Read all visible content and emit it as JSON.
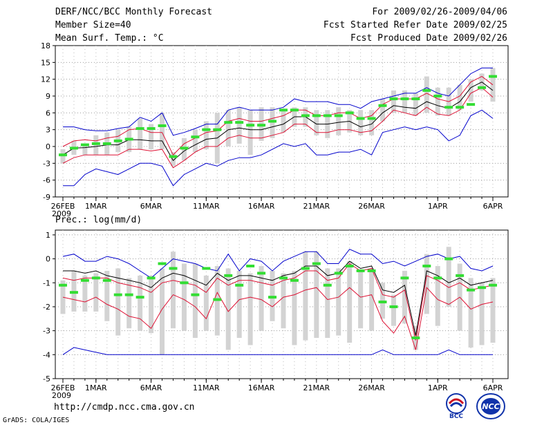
{
  "header": {
    "title": "DERF/NCC/BCC Monthly Forecast",
    "member_size": "Member Size=40",
    "variable_temp": "Mean Surf. Temp.: °C",
    "forecast_for": "For 2009/02/26-2009/04/06",
    "started_refer": "Fcst Started Refer Date 2009/02/25",
    "produced": "Fcst Produced Date 2009/02/26"
  },
  "footer": {
    "url": "http://cmdp.ncc.cma.gov.cn",
    "grads": "GrADS: COLA/IGES",
    "logo_bcc": "BCC",
    "logo_ncc": "NCC"
  },
  "colors": {
    "envelope": "#0000cc",
    "spread": "#dd1133",
    "mean": "#000000",
    "box": "#d3d3d3",
    "obs": "#33dd33"
  },
  "chart_data": [
    {
      "type": "line",
      "title": "Mean Surf. Temp.: °C",
      "ylim": [
        -9,
        18
      ],
      "yticks": [
        -9,
        -6,
        -3,
        0,
        3,
        6,
        9,
        12,
        15,
        18
      ],
      "xticks": [
        {
          "day": 0,
          "label": "26FEB",
          "sub": "2009"
        },
        {
          "day": 3,
          "label": "1MAR"
        },
        {
          "day": 8,
          "label": "6MAR"
        },
        {
          "day": 13,
          "label": "11MAR"
        },
        {
          "day": 18,
          "label": "16MAR"
        },
        {
          "day": 23,
          "label": "21MAR"
        },
        {
          "day": 28,
          "label": "26MAR"
        },
        {
          "day": 34,
          "label": "1APR"
        },
        {
          "day": 39,
          "label": "6APR"
        }
      ],
      "series": [
        {
          "name": "max",
          "values": [
            3.5,
            3.5,
            3.0,
            2.8,
            2.8,
            3.2,
            3.5,
            5.2,
            4.5,
            6.0,
            2.0,
            2.5,
            3.2,
            4.0,
            4.0,
            6.5,
            7.0,
            6.5,
            6.5,
            6.5,
            7.0,
            8.5,
            8.0,
            8.0,
            8.0,
            7.5,
            7.5,
            6.8,
            8.0,
            8.5,
            9.0,
            9.5,
            9.5,
            10.5,
            9.5,
            9.0,
            11.0,
            13.0,
            14.0,
            14.0
          ]
        },
        {
          "name": "upper",
          "values": [
            0.0,
            1.0,
            1.2,
            1.0,
            1.5,
            1.8,
            3.0,
            3.2,
            2.5,
            2.5,
            -1.5,
            0.5,
            1.5,
            2.5,
            2.8,
            4.5,
            5.0,
            4.5,
            4.5,
            5.0,
            5.5,
            6.5,
            6.5,
            5.5,
            5.5,
            6.0,
            6.0,
            5.0,
            5.5,
            7.5,
            8.5,
            8.5,
            8.5,
            9.5,
            8.5,
            8.0,
            9.0,
            11.5,
            12.5,
            11.0
          ]
        },
        {
          "name": "mean",
          "values": [
            -1.5,
            -0.3,
            -0.2,
            0.0,
            0.3,
            0.3,
            1.2,
            1.2,
            1.0,
            1.0,
            -2.5,
            -0.8,
            0.3,
            1.3,
            1.5,
            3.0,
            3.3,
            3.0,
            3.0,
            3.5,
            4.0,
            5.3,
            5.3,
            4.0,
            4.0,
            4.3,
            4.5,
            3.5,
            4.0,
            6.0,
            7.3,
            7.0,
            6.8,
            8.0,
            7.3,
            6.8,
            8.0,
            10.5,
            11.5,
            10.0
          ]
        },
        {
          "name": "lower",
          "values": [
            -3.0,
            -2.0,
            -1.5,
            -1.5,
            -1.5,
            -1.5,
            -0.5,
            -0.5,
            -0.8,
            -0.5,
            -3.8,
            -2.5,
            -1.0,
            0.0,
            0.0,
            1.5,
            2.0,
            1.5,
            1.5,
            2.0,
            2.5,
            4.0,
            4.0,
            2.5,
            2.5,
            3.0,
            3.0,
            2.5,
            2.8,
            4.5,
            6.5,
            6.0,
            5.5,
            7.0,
            5.8,
            5.5,
            6.5,
            9.5,
            10.5,
            8.8
          ]
        },
        {
          "name": "min",
          "values": [
            -7.0,
            -7.0,
            -5.0,
            -4.0,
            -4.5,
            -5.0,
            -4.0,
            -3.0,
            -3.0,
            -3.5,
            -7.0,
            -5.0,
            -4.0,
            -3.0,
            -3.5,
            -2.5,
            -2.0,
            -2.0,
            -1.5,
            -0.5,
            0.5,
            0.0,
            0.5,
            -1.5,
            -1.5,
            -1.0,
            -1.0,
            -0.5,
            -1.5,
            2.5,
            3.0,
            3.5,
            3.0,
            3.5,
            3.0,
            1.0,
            2.0,
            5.5,
            6.5,
            5.0
          ]
        },
        {
          "name": "box_top",
          "values": [
            -0.5,
            1.0,
            0.5,
            2.0,
            2.5,
            3.0,
            3.5,
            5.0,
            4.0,
            6.0,
            -1.0,
            1.5,
            3.0,
            4.5,
            6.0,
            6.5,
            7.0,
            6.5,
            7.0,
            7.0,
            6.5,
            7.0,
            7.0,
            6.5,
            6.5,
            7.0,
            6.5,
            6.5,
            6.5,
            8.5,
            10.0,
            10.0,
            9.5,
            12.5,
            10.5,
            10.5,
            11.0,
            12.0,
            13.0,
            14.0
          ]
        },
        {
          "name": "box_bottom",
          "values": [
            -3.0,
            -1.5,
            -1.5,
            -1.5,
            -1.5,
            -1.0,
            -1.0,
            -0.5,
            -0.5,
            -0.5,
            -3.5,
            -2.5,
            -1.0,
            -0.5,
            -3.0,
            0.0,
            0.5,
            -1.5,
            1.0,
            1.5,
            2.5,
            3.5,
            3.5,
            2.0,
            1.5,
            2.0,
            2.5,
            2.0,
            2.0,
            4.5,
            6.0,
            6.0,
            5.5,
            6.0,
            5.5,
            5.5,
            6.5,
            8.0,
            10.0,
            8.0
          ]
        },
        {
          "name": "observed",
          "values": [
            -1.5,
            -0.3,
            0.3,
            0.5,
            0.5,
            1.0,
            1.3,
            3.2,
            3.2,
            3.7,
            -1.8,
            -0.3,
            1.7,
            3.0,
            3.0,
            4.3,
            4.3,
            3.8,
            3.8,
            4.5,
            6.5,
            6.5,
            5.5,
            5.5,
            5.5,
            5.5,
            6.0,
            5.0,
            5.0,
            7.3,
            8.5,
            8.5,
            8.5,
            10.0,
            9.0,
            7.0,
            7.0,
            7.5,
            10.5,
            12.5
          ]
        }
      ]
    },
    {
      "type": "line",
      "title": "Prec.: log(mm/d)",
      "ylim": [
        -5,
        1.2
      ],
      "yticks": [
        -5,
        -4,
        -3,
        -2,
        -1,
        0,
        1
      ],
      "xticks": [
        {
          "day": 0,
          "label": "26FEB",
          "sub": "2009"
        },
        {
          "day": 3,
          "label": "1MAR"
        },
        {
          "day": 8,
          "label": "6MAR"
        },
        {
          "day": 13,
          "label": "11MAR"
        },
        {
          "day": 18,
          "label": "16MAR"
        },
        {
          "day": 23,
          "label": "21MAR"
        },
        {
          "day": 28,
          "label": "26MAR"
        },
        {
          "day": 34,
          "label": "1APR"
        },
        {
          "day": 39,
          "label": "6APR"
        }
      ],
      "series": [
        {
          "name": "max",
          "values": [
            0.1,
            0.2,
            -0.1,
            -0.1,
            0.1,
            0.0,
            -0.2,
            -0.5,
            -0.8,
            -0.4,
            0.0,
            -0.1,
            -0.2,
            -0.4,
            -0.5,
            0.2,
            -0.5,
            0.0,
            -0.1,
            -0.5,
            -0.1,
            0.1,
            0.3,
            0.3,
            -0.2,
            -0.2,
            0.4,
            0.2,
            0.2,
            -0.2,
            -0.1,
            -0.3,
            -0.1,
            0.1,
            0.2,
            0.0,
            0.1,
            -0.4,
            -0.5,
            -0.3
          ]
        },
        {
          "name": "upper",
          "values": [
            -0.8,
            -0.9,
            -0.8,
            -0.8,
            -0.8,
            -1.0,
            -1.1,
            -1.2,
            -1.4,
            -1.0,
            -0.9,
            -1.0,
            -1.1,
            -1.4,
            -0.8,
            -1.1,
            -0.9,
            -0.9,
            -1.0,
            -1.1,
            -0.9,
            -0.8,
            -0.5,
            -0.5,
            -0.9,
            -0.8,
            -0.2,
            -0.5,
            -0.4,
            -1.5,
            -1.6,
            -1.3,
            -3.4,
            -0.7,
            -0.9,
            -1.2,
            -1.0,
            -1.3,
            -1.2,
            -1.1
          ]
        },
        {
          "name": "mean",
          "values": [
            -0.5,
            -0.5,
            -0.6,
            -0.5,
            -0.7,
            -0.8,
            -0.9,
            -1.0,
            -1.2,
            -0.8,
            -0.6,
            -0.7,
            -0.9,
            -1.1,
            -0.6,
            -0.9,
            -0.7,
            -0.7,
            -0.8,
            -0.9,
            -0.7,
            -0.6,
            -0.3,
            -0.3,
            -0.7,
            -0.6,
            -0.1,
            -0.4,
            -0.3,
            -1.3,
            -1.4,
            -1.1,
            -3.2,
            -0.5,
            -0.7,
            -1.0,
            -0.8,
            -1.1,
            -1.0,
            -0.9
          ]
        },
        {
          "name": "lower",
          "values": [
            -1.6,
            -1.7,
            -1.8,
            -1.6,
            -1.9,
            -2.1,
            -2.4,
            -2.5,
            -2.9,
            -2.1,
            -1.5,
            -1.7,
            -2.0,
            -2.5,
            -1.4,
            -2.2,
            -1.7,
            -1.6,
            -1.7,
            -2.0,
            -1.6,
            -1.5,
            -1.3,
            -1.2,
            -1.7,
            -1.6,
            -1.2,
            -1.6,
            -1.5,
            -2.6,
            -3.1,
            -2.4,
            -3.8,
            -1.2,
            -1.7,
            -1.9,
            -1.6,
            -2.1,
            -1.9,
            -1.8
          ]
        },
        {
          "name": "min",
          "values": [
            -4.0,
            -3.7,
            -3.8,
            -3.9,
            -4.0,
            -4.0,
            -4.0,
            -4.0,
            -4.0,
            -4.0,
            -4.0,
            -4.0,
            -4.0,
            -4.0,
            -4.0,
            -4.0,
            -4.0,
            -4.0,
            -4.0,
            -4.0,
            -4.0,
            -4.0,
            -4.0,
            -4.0,
            -4.0,
            -4.0,
            -4.0,
            -4.0,
            -4.0,
            -3.8,
            -4.0,
            -4.0,
            -4.0,
            -4.0,
            -4.0,
            -3.8,
            -4.0,
            -4.0,
            -4.0,
            -4.0
          ]
        },
        {
          "name": "box_top",
          "values": [
            -0.9,
            -0.5,
            -0.7,
            -0.6,
            -0.5,
            -0.4,
            -0.8,
            -0.7,
            -0.7,
            -0.4,
            0.3,
            -0.2,
            -0.2,
            -0.7,
            -0.3,
            -0.4,
            -0.5,
            -0.6,
            -0.3,
            -0.5,
            -0.6,
            -0.5,
            0.3,
            0.3,
            -0.4,
            -0.4,
            -0.1,
            -0.5,
            -0.4,
            -1.0,
            -1.5,
            -0.5,
            -2.8,
            0.2,
            -0.3,
            0.5,
            -0.2,
            -0.8,
            -1.0,
            -0.8
          ]
        },
        {
          "name": "box_bottom",
          "values": [
            -2.3,
            -2.2,
            -2.2,
            -2.2,
            -2.6,
            -3.2,
            -2.9,
            -3.0,
            -3.1,
            -4.0,
            -2.9,
            -3.0,
            -3.3,
            -3.0,
            -3.2,
            -3.8,
            -3.3,
            -3.6,
            -3.0,
            -2.6,
            -2.9,
            -3.6,
            -3.4,
            -3.3,
            -3.3,
            -3.2,
            -3.5,
            -2.9,
            -3.0,
            -2.5,
            -2.8,
            -2.7,
            -3.8,
            -2.3,
            -2.8,
            -2.0,
            -3.0,
            -3.7,
            -3.6,
            -3.5
          ]
        },
        {
          "name": "observed",
          "values": [
            -1.1,
            -1.4,
            -0.9,
            -0.8,
            -0.9,
            -1.5,
            -1.5,
            -1.6,
            -0.8,
            -0.2,
            -0.4,
            -1.0,
            -1.5,
            -0.4,
            -1.7,
            -0.7,
            -1.1,
            -0.3,
            -0.6,
            -1.6,
            -0.8,
            -0.9,
            -0.4,
            -0.2,
            -1.1,
            -0.6,
            -0.3,
            -0.5,
            -0.5,
            -1.8,
            -2.0,
            -0.8,
            -3.3,
            -0.3,
            -0.8,
            -0.0,
            -0.7,
            -1.3,
            -1.2,
            -1.1
          ]
        }
      ]
    }
  ]
}
